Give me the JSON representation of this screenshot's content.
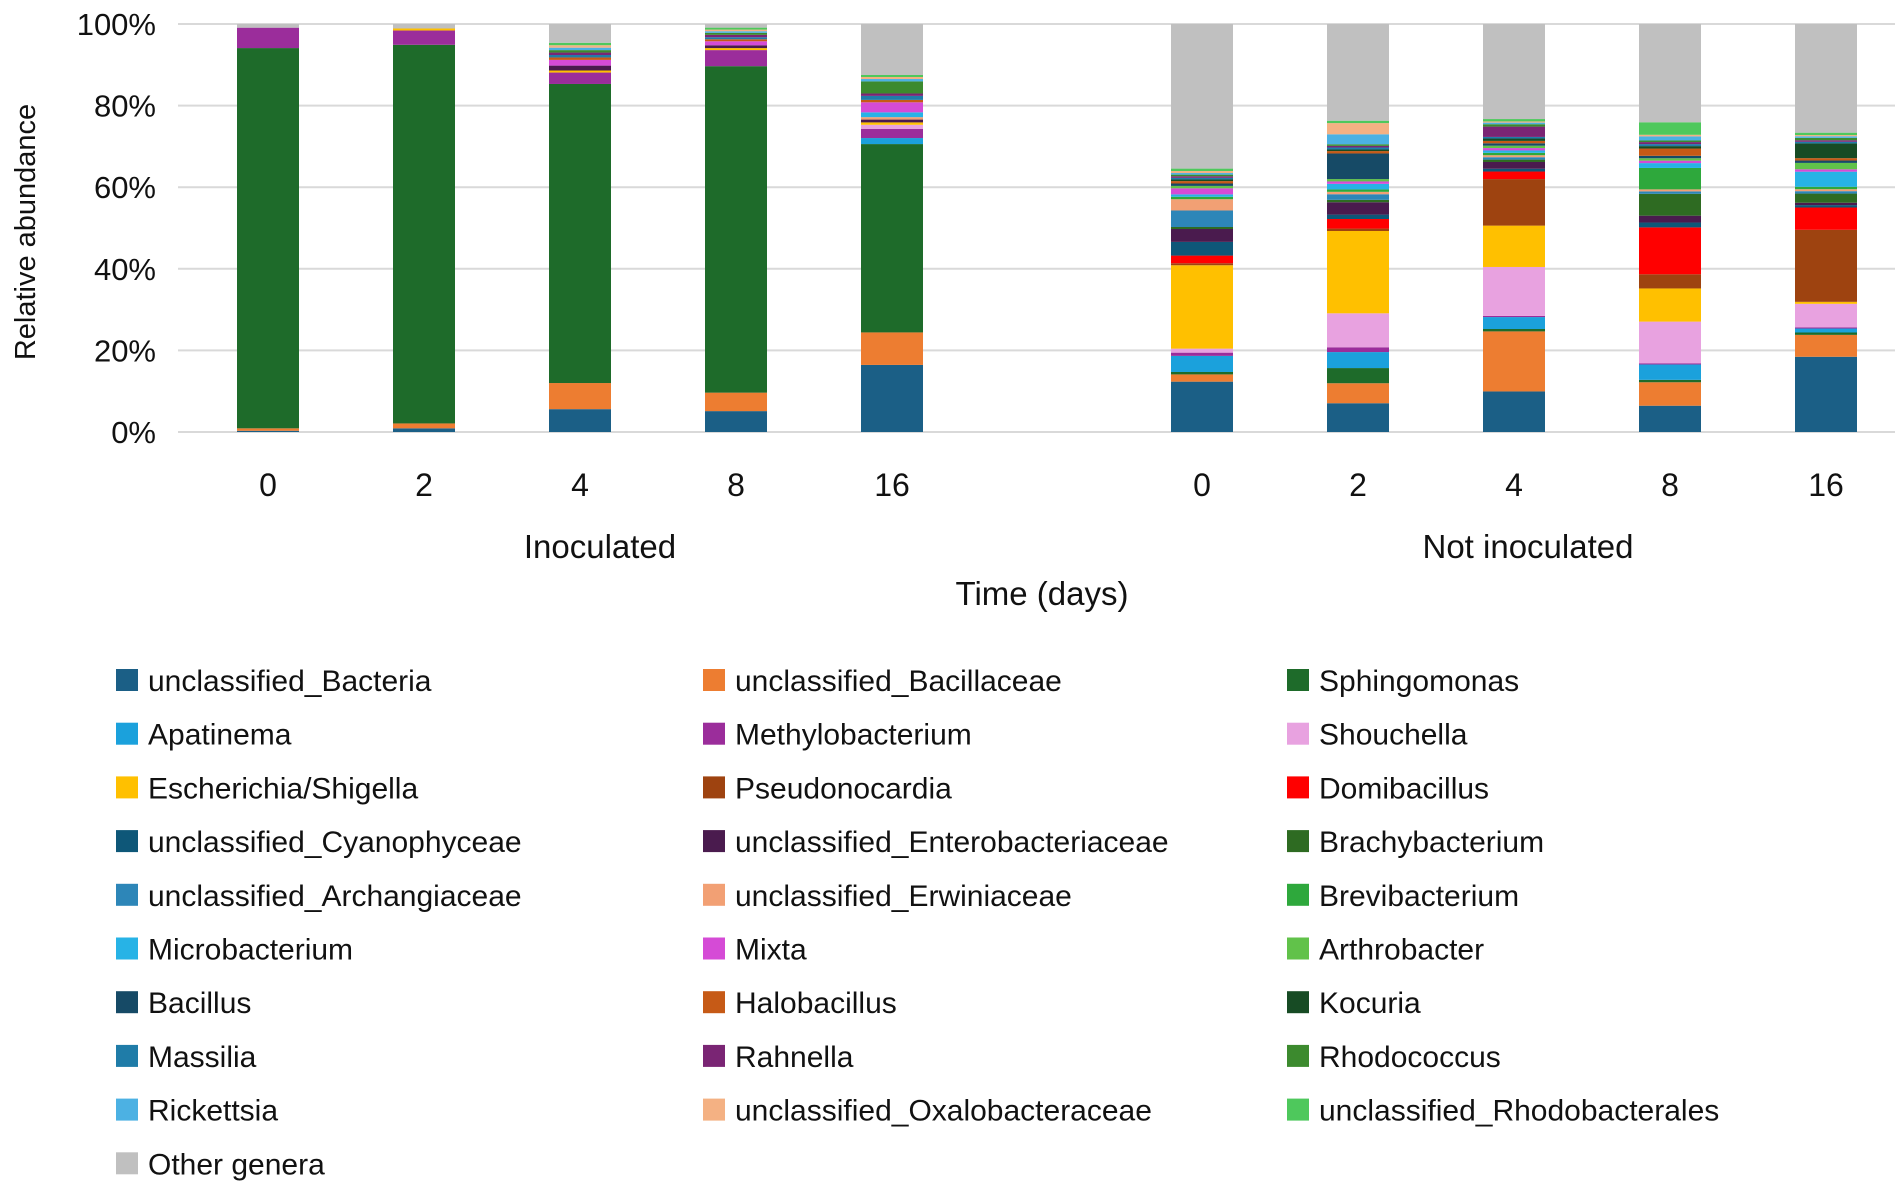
{
  "chart_data": {
    "type": "stacked-bar",
    "ylabel": "Relative abundance",
    "xlabel": "Time (days)",
    "ylim": [
      0,
      100
    ],
    "yticks": [
      "0%",
      "20%",
      "40%",
      "60%",
      "80%",
      "100%"
    ],
    "grid": true,
    "legend_position": "bottom",
    "groups": [
      {
        "label": "Inoculated",
        "categories": [
          "0",
          "2",
          "4",
          "8",
          "16"
        ]
      },
      {
        "label": "Not inoculated",
        "categories": [
          "0",
          "2",
          "4",
          "8",
          "16"
        ]
      }
    ],
    "series": [
      {
        "name": "unclassified_Bacteria",
        "color": "#1b5f86",
        "values": [
          0.3,
          0.9,
          5.6,
          5.2,
          16.7,
          12.5,
          7.2,
          10.2,
          6.5,
          18.9
        ]
      },
      {
        "name": "unclassified_Bacillaceae",
        "color": "#ed7d31",
        "values": [
          0.6,
          1.2,
          6.4,
          4.6,
          8.1,
          1.8,
          5.0,
          15.1,
          5.8,
          5.5
        ]
      },
      {
        "name": "Sphingomonas",
        "color": "#1e6b2a",
        "values": [
          93.2,
          92.8,
          73.3,
          81.3,
          46.9,
          0.6,
          3.8,
          0.6,
          0.6,
          0.6
        ]
      },
      {
        "name": "Apatinema",
        "color": "#1ba1dc",
        "values": [
          0,
          0,
          0,
          0,
          1.5,
          4.0,
          4.0,
          3.0,
          3.8,
          1.0
        ]
      },
      {
        "name": "Methylobacterium",
        "color": "#9b2d9b",
        "values": [
          5.0,
          3.5,
          2.8,
          4.0,
          2.3,
          0.8,
          1.2,
          0.3,
          0.3,
          0.3
        ]
      },
      {
        "name": "Shouchella",
        "color": "#e8a2e0",
        "values": [
          0,
          0,
          0,
          0,
          1.0,
          1.0,
          8.5,
          12.3,
          10.3,
          5.9
        ]
      },
      {
        "name": "Escherichia/Shigella",
        "color": "#ffc000",
        "values": [
          0,
          0.5,
          0.5,
          0.5,
          0.6,
          20.7,
          20.6,
          10.4,
          8.2,
          0.5
        ]
      },
      {
        "name": "Pseudonocardia",
        "color": "#9e4310",
        "values": [
          0,
          0,
          0,
          0,
          0,
          0.5,
          0.6,
          11.7,
          3.5,
          18.1
        ]
      },
      {
        "name": "Domibacillus",
        "color": "#ff0000",
        "values": [
          0,
          0,
          0,
          0,
          0,
          1.9,
          2.4,
          1.9,
          11.6,
          5.6
        ]
      },
      {
        "name": "unclassified_Cyanophyceae",
        "color": "#0e5778",
        "values": [
          0,
          0,
          0,
          0,
          0,
          3.4,
          1.1,
          0.7,
          1.2,
          0.6
        ]
      },
      {
        "name": "unclassified_Enterobacteriaceae",
        "color": "#4a1b4e",
        "values": [
          0,
          0,
          1.2,
          0.7,
          0.7,
          3.2,
          3.1,
          1.7,
          1.7,
          0.6
        ]
      },
      {
        "name": "Brachybacterium",
        "color": "#2e6b22",
        "values": [
          0,
          0,
          0,
          0,
          0,
          0.5,
          0.6,
          0.6,
          5.4,
          2.3
        ]
      },
      {
        "name": "unclassified_Archangiaceae",
        "color": "#2d86b8",
        "values": [
          0,
          0,
          0,
          0,
          0,
          4.1,
          1.4,
          0.6,
          0.6,
          0.6
        ]
      },
      {
        "name": "unclassified_Erwiniaceae",
        "color": "#f2a074",
        "values": [
          0,
          0,
          0,
          0,
          0.6,
          2.8,
          0.6,
          0.5,
          0.5,
          0.5
        ]
      },
      {
        "name": "Brevibacterium",
        "color": "#2ea83c",
        "values": [
          0,
          0,
          0,
          0,
          0,
          0.6,
          0.6,
          0.6,
          5.3,
          0.6
        ]
      },
      {
        "name": "Microbacterium",
        "color": "#27b3e6",
        "values": [
          0,
          0,
          0,
          0,
          1.2,
          0.6,
          1.4,
          0.6,
          1.2,
          3.8
        ]
      },
      {
        "name": "Mixta",
        "color": "#d54bd6",
        "values": [
          0,
          0,
          1.4,
          1.0,
          2.5,
          1.5,
          0.6,
          0.6,
          0.6,
          0.6
        ]
      },
      {
        "name": "Arthrobacter",
        "color": "#61c24a",
        "values": [
          0,
          0,
          0,
          0,
          0,
          0.6,
          0.6,
          0.6,
          0.6,
          1.6
        ]
      },
      {
        "name": "Bacillus",
        "color": "#164a66",
        "values": [
          0,
          0,
          0,
          0,
          0,
          0.6,
          6.4,
          0.6,
          0.6,
          0.6
        ]
      },
      {
        "name": "Halobacillus",
        "color": "#c65a16",
        "values": [
          0,
          0,
          0.6,
          0.5,
          0.6,
          0.6,
          0.6,
          0.6,
          1.8,
          0.6
        ]
      },
      {
        "name": "Kocuria",
        "color": "#174b24",
        "values": [
          0,
          0,
          0,
          0,
          0,
          0.4,
          0.4,
          0.6,
          0.6,
          3.7
        ]
      },
      {
        "name": "Massilia",
        "color": "#1f7ca8",
        "values": [
          0,
          0,
          0.6,
          0.5,
          1.0,
          0.4,
          0.5,
          0.4,
          0.5,
          0.4
        ]
      },
      {
        "name": "Rahnella",
        "color": "#7a2574",
        "values": [
          0,
          0,
          0.6,
          0.6,
          0.6,
          0.4,
          0.4,
          2.6,
          0.5,
          0.4
        ]
      },
      {
        "name": "Rhodococcus",
        "color": "#3c8a2e",
        "values": [
          0,
          0,
          0.6,
          0.5,
          3.0,
          0.4,
          0.4,
          0.6,
          0.4,
          0.6
        ]
      },
      {
        "name": "Rickettsia",
        "color": "#4cb1e3",
        "values": [
          0,
          0,
          0.6,
          0.4,
          0.6,
          0.4,
          2.5,
          0.4,
          1.0,
          0.4
        ]
      },
      {
        "name": "unclassified_Oxalobacteraceae",
        "color": "#f4b183",
        "values": [
          0,
          0,
          0.6,
          0.4,
          0.5,
          0.5,
          2.8,
          0.3,
          0.4,
          0.3
        ]
      },
      {
        "name": "unclassified_Rhodobacterales",
        "color": "#4ec85c",
        "values": [
          0,
          0,
          0.6,
          0.5,
          0.5,
          0.6,
          0.6,
          0.6,
          3.1,
          0.6
        ]
      },
      {
        "name": "Other genera",
        "color": "#c0c0c0",
        "values": [
          0.9,
          1.1,
          4.6,
          0.9,
          12.7,
          35.9,
          24.2,
          23.9,
          24.3,
          27.3
        ]
      }
    ]
  }
}
